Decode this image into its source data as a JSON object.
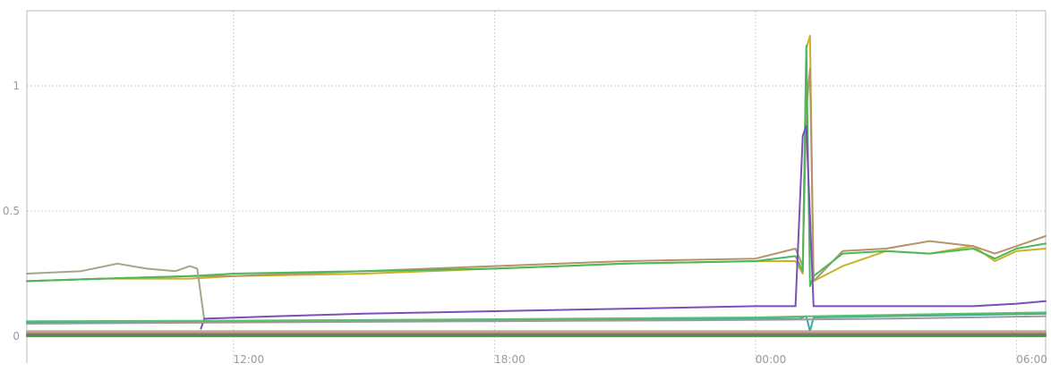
{
  "chart_data": {
    "type": "line",
    "title": "",
    "xlabel": "",
    "ylabel": "",
    "x_range": [
      "07:15",
      "06:40"
    ],
    "ylim": [
      0,
      1.3
    ],
    "grid": true,
    "legend": "none",
    "x_ticks": [
      {
        "label": "12:00",
        "value": "12:00"
      },
      {
        "label": "18:00",
        "value": "18:00"
      },
      {
        "label": "00:00",
        "value": "00:00"
      },
      {
        "label": "06:00",
        "value": "06:00"
      }
    ],
    "y_ticks": [
      {
        "label": "0",
        "value": 0
      },
      {
        "label": "0.5",
        "value": 0.5
      },
      {
        "label": "1",
        "value": 1
      }
    ],
    "series": [
      {
        "color": "#c8b22b",
        "points": [
          [
            "07:15",
            0.22
          ],
          [
            "09:00",
            0.23
          ],
          [
            "11:00",
            0.23
          ],
          [
            "12:00",
            0.24
          ],
          [
            "15:00",
            0.25
          ],
          [
            "18:00",
            0.27
          ],
          [
            "21:00",
            0.29
          ],
          [
            "00:00",
            0.3
          ],
          [
            "00:55",
            0.3
          ],
          [
            "01:05",
            0.25
          ],
          [
            "01:10",
            1.15
          ],
          [
            "01:15",
            1.2
          ],
          [
            "01:20",
            0.22
          ],
          [
            "02:00",
            0.28
          ],
          [
            "03:00",
            0.34
          ],
          [
            "04:00",
            0.33
          ],
          [
            "05:00",
            0.36
          ],
          [
            "05:30",
            0.3
          ],
          [
            "06:00",
            0.34
          ],
          [
            "06:40",
            0.35
          ]
        ]
      },
      {
        "color": "#b5946a",
        "points": [
          [
            "07:15",
            0.22
          ],
          [
            "09:00",
            0.23
          ],
          [
            "11:00",
            0.24
          ],
          [
            "12:00",
            0.24
          ],
          [
            "15:00",
            0.26
          ],
          [
            "18:00",
            0.28
          ],
          [
            "21:00",
            0.3
          ],
          [
            "00:00",
            0.31
          ],
          [
            "00:55",
            0.35
          ],
          [
            "01:05",
            0.28
          ],
          [
            "01:10",
            0.9
          ],
          [
            "01:15",
            1.07
          ],
          [
            "01:20",
            0.22
          ],
          [
            "02:00",
            0.34
          ],
          [
            "03:00",
            0.35
          ],
          [
            "04:00",
            0.38
          ],
          [
            "05:00",
            0.36
          ],
          [
            "05:30",
            0.33
          ],
          [
            "06:00",
            0.36
          ],
          [
            "06:40",
            0.4
          ]
        ]
      },
      {
        "color": "#4cb85a",
        "points": [
          [
            "07:15",
            0.22
          ],
          [
            "09:00",
            0.23
          ],
          [
            "11:00",
            0.24
          ],
          [
            "12:00",
            0.25
          ],
          [
            "15:00",
            0.26
          ],
          [
            "18:00",
            0.27
          ],
          [
            "21:00",
            0.29
          ],
          [
            "00:00",
            0.3
          ],
          [
            "00:55",
            0.32
          ],
          [
            "01:05",
            0.26
          ],
          [
            "01:10",
            1.16
          ],
          [
            "01:15",
            0.2
          ],
          [
            "01:20",
            0.24
          ],
          [
            "02:00",
            0.33
          ],
          [
            "03:00",
            0.34
          ],
          [
            "04:00",
            0.33
          ],
          [
            "05:00",
            0.35
          ],
          [
            "05:30",
            0.31
          ],
          [
            "06:00",
            0.35
          ],
          [
            "06:40",
            0.37
          ]
        ]
      },
      {
        "color": "#a3a78a",
        "points": [
          [
            "07:15",
            0.25
          ],
          [
            "08:30",
            0.26
          ],
          [
            "09:20",
            0.29
          ],
          [
            "10:00",
            0.27
          ],
          [
            "10:40",
            0.26
          ],
          [
            "11:00",
            0.28
          ],
          [
            "11:10",
            0.27
          ],
          [
            "11:20",
            0.06
          ]
        ]
      },
      {
        "color": "#7a4fb8",
        "points": [
          [
            "11:15",
            0.03
          ],
          [
            "11:20",
            0.07
          ],
          [
            "13:00",
            0.08
          ],
          [
            "15:00",
            0.09
          ],
          [
            "18:00",
            0.1
          ],
          [
            "21:00",
            0.11
          ],
          [
            "00:00",
            0.12
          ],
          [
            "00:55",
            0.12
          ],
          [
            "01:05",
            0.8
          ],
          [
            "01:10",
            0.84
          ],
          [
            "01:20",
            0.12
          ],
          [
            "03:00",
            0.12
          ],
          [
            "05:00",
            0.12
          ],
          [
            "06:00",
            0.13
          ],
          [
            "06:40",
            0.14
          ]
        ]
      },
      {
        "color": "#3aa8a0",
        "points": [
          [
            "07:15",
            0.055
          ],
          [
            "12:00",
            0.06
          ],
          [
            "18:00",
            0.065
          ],
          [
            "00:00",
            0.07
          ],
          [
            "01:00",
            0.07
          ],
          [
            "01:10",
            0.08
          ],
          [
            "01:15",
            0.02
          ],
          [
            "01:20",
            0.075
          ],
          [
            "03:00",
            0.08
          ],
          [
            "06:40",
            0.09
          ]
        ]
      },
      {
        "color": "#5cc06a",
        "points": [
          [
            "07:15",
            0.06
          ],
          [
            "12:00",
            0.062
          ],
          [
            "18:00",
            0.068
          ],
          [
            "00:00",
            0.075
          ],
          [
            "01:20",
            0.08
          ],
          [
            "03:00",
            0.085
          ],
          [
            "06:40",
            0.095
          ]
        ]
      },
      {
        "color": "#9b9b9b",
        "points": [
          [
            "07:15",
            0.05
          ],
          [
            "12:00",
            0.055
          ],
          [
            "18:00",
            0.06
          ],
          [
            "00:00",
            0.065
          ],
          [
            "03:00",
            0.07
          ],
          [
            "06:40",
            0.08
          ]
        ]
      },
      {
        "color": "#c79a92",
        "points": [
          [
            "07:15",
            0.02
          ],
          [
            "12:00",
            0.02
          ],
          [
            "18:00",
            0.02
          ],
          [
            "00:00",
            0.02
          ],
          [
            "06:40",
            0.02
          ]
        ]
      },
      {
        "color": "#8a8a5a",
        "points": [
          [
            "07:15",
            0.012
          ],
          [
            "12:00",
            0.012
          ],
          [
            "18:00",
            0.012
          ],
          [
            "00:00",
            0.012
          ],
          [
            "06:40",
            0.012
          ]
        ]
      },
      {
        "color": "#6a6a6a",
        "points": [
          [
            "07:15",
            0.005
          ],
          [
            "12:00",
            0.005
          ],
          [
            "18:00",
            0.005
          ],
          [
            "00:00",
            0.005
          ],
          [
            "06:40",
            0.005
          ]
        ]
      },
      {
        "color": "#4e9a4e",
        "points": [
          [
            "07:15",
            0.0
          ],
          [
            "12:00",
            0.0
          ],
          [
            "18:00",
            0.0
          ],
          [
            "00:00",
            0.0
          ],
          [
            "06:40",
            0.0
          ]
        ]
      }
    ]
  }
}
